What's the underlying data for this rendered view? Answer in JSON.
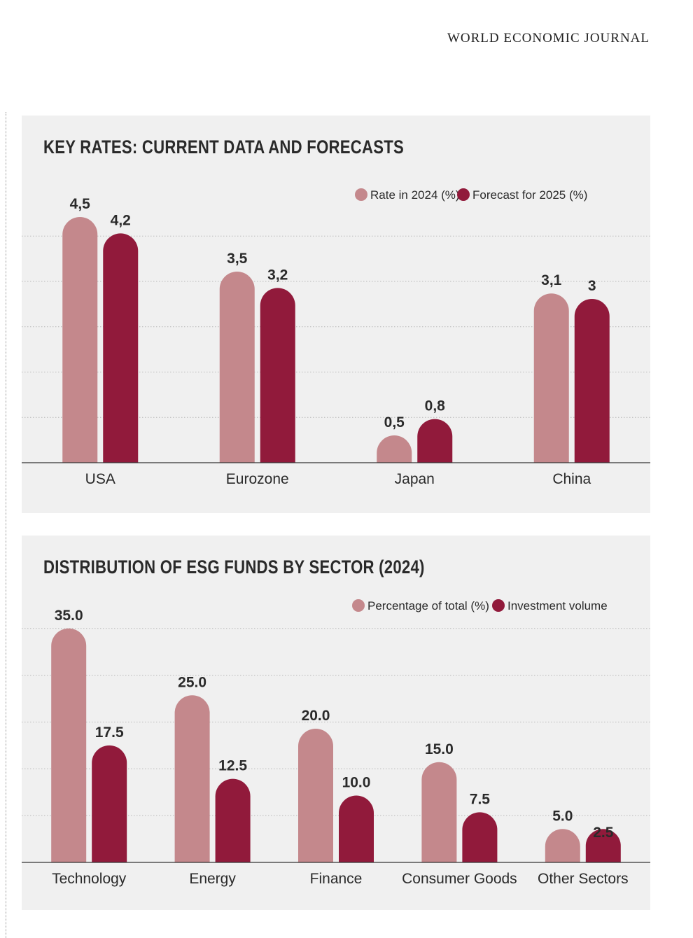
{
  "header": {
    "journal_name": "WORLD ECONOMIC JOURNAL"
  },
  "colors": {
    "light": "#c4888c",
    "dark": "#911a3b",
    "panel_bg": "#f0f0f0",
    "grid": "#b8b8b8",
    "text": "#2a2a2a"
  },
  "chart_data": [
    {
      "type": "bar",
      "title": "KEY RATES: CURRENT DATA AND FORECASTS",
      "categories": [
        "USA",
        "Eurozone",
        "Japan",
        "China"
      ],
      "series": [
        {
          "name": "Rate in 2024 (%)",
          "values": [
            4.5,
            3.5,
            0.5,
            3.1
          ],
          "labels": [
            "4,5",
            "3,5",
            "0,5",
            "3,1"
          ]
        },
        {
          "name": "Forecast for 2025 (%)",
          "values": [
            4.2,
            3.2,
            0.8,
            3.0
          ],
          "labels": [
            "4,2",
            "3,2",
            "0,8",
            "3"
          ]
        }
      ],
      "ylim": [
        0,
        5
      ],
      "grid": true,
      "legend": "top-right"
    },
    {
      "type": "bar",
      "title": "DISTRIBUTION OF ESG FUNDS BY SECTOR (2024)",
      "categories": [
        "Technology",
        "Energy",
        "Finance",
        "Consumer Goods",
        "Other Sectors"
      ],
      "series": [
        {
          "name": "Percentage of total (%)",
          "values": [
            35.0,
            25.0,
            20.0,
            15.0,
            5.0
          ],
          "labels": [
            "35.0",
            "25.0",
            "20.0",
            "15.0",
            "5.0"
          ]
        },
        {
          "name": "Investment volume",
          "values": [
            17.5,
            12.5,
            10.0,
            7.5,
            2.5
          ],
          "labels": [
            "17.5",
            "12.5",
            "10.0",
            "7.5",
            "2.5"
          ]
        }
      ],
      "ylim": [
        0,
        35
      ],
      "grid": true,
      "legend": "top-right"
    }
  ]
}
